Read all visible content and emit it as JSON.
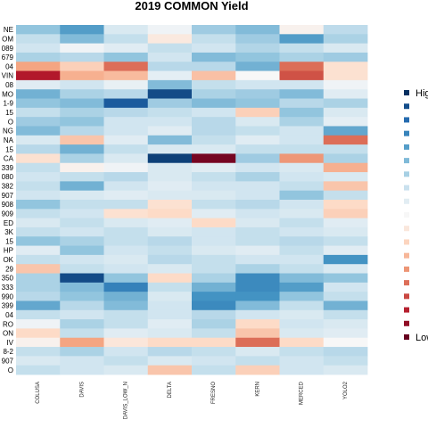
{
  "chart_data": {
    "type": "heatmap",
    "title": "2019 COMMON Yield",
    "columns": [
      "COLUSA",
      "DAVIS",
      "DAVIS_LOW_N",
      "DELTA",
      "FRESNO",
      "KERN",
      "MERCED",
      "YOLO2"
    ],
    "rows": [
      "NE",
      "OM",
      "089",
      "679",
      "04",
      "VIN",
      "08",
      "MO",
      "1-9",
      "15",
      "O",
      "NG",
      "NA",
      "15",
      "CA",
      "339",
      "080",
      "382",
      "907",
      "908",
      "909",
      "ED",
      "3K",
      "15",
      "HP",
      "OK",
      "29",
      "350",
      "333",
      "990",
      "399",
      "04",
      "RO",
      "ON",
      "IV",
      "8-2",
      "907",
      "O"
    ],
    "values": [
      [
        0.7,
        0.78,
        0.58,
        0.52,
        0.68,
        0.72,
        0.48,
        0.63
      ],
      [
        0.62,
        0.72,
        0.62,
        0.45,
        0.62,
        0.68,
        0.78,
        0.66
      ],
      [
        0.6,
        0.52,
        0.56,
        0.62,
        0.6,
        0.65,
        0.62,
        0.58
      ],
      [
        0.66,
        0.64,
        0.7,
        0.6,
        0.72,
        0.7,
        0.66,
        0.68
      ],
      [
        0.3,
        0.38,
        0.22,
        0.64,
        0.64,
        0.74,
        0.22,
        0.42
      ],
      [
        0.1,
        0.32,
        0.34,
        0.55,
        0.35,
        0.5,
        0.18,
        0.42
      ],
      [
        0.56,
        0.6,
        0.54,
        0.72,
        0.62,
        0.6,
        0.6,
        0.52
      ],
      [
        0.74,
        0.66,
        0.64,
        0.95,
        0.66,
        0.68,
        0.72,
        0.56
      ],
      [
        0.7,
        0.72,
        0.92,
        0.68,
        0.72,
        0.7,
        0.64,
        0.66
      ],
      [
        0.62,
        0.66,
        0.64,
        0.62,
        0.6,
        0.38,
        0.7,
        0.58
      ],
      [
        0.68,
        0.7,
        0.6,
        0.6,
        0.64,
        0.58,
        0.66,
        0.55
      ],
      [
        0.72,
        0.64,
        0.6,
        0.56,
        0.64,
        0.62,
        0.6,
        0.76
      ],
      [
        0.58,
        0.36,
        0.56,
        0.72,
        0.62,
        0.56,
        0.6,
        0.22
      ],
      [
        0.64,
        0.74,
        0.62,
        0.58,
        0.58,
        0.62,
        0.62,
        0.62
      ],
      [
        0.42,
        0.66,
        0.58,
        0.97,
        0.02,
        0.68,
        0.28,
        0.66
      ],
      [
        0.62,
        0.48,
        0.52,
        0.58,
        0.56,
        0.6,
        0.58,
        0.32
      ],
      [
        0.6,
        0.62,
        0.64,
        0.58,
        0.62,
        0.66,
        0.6,
        0.58
      ],
      [
        0.62,
        0.74,
        0.6,
        0.56,
        0.6,
        0.6,
        0.62,
        0.36
      ],
      [
        0.6,
        0.58,
        0.56,
        0.58,
        0.58,
        0.6,
        0.7,
        0.62
      ],
      [
        0.7,
        0.62,
        0.62,
        0.42,
        0.62,
        0.64,
        0.6,
        0.4
      ],
      [
        0.62,
        0.6,
        0.42,
        0.4,
        0.56,
        0.6,
        0.58,
        0.38
      ],
      [
        0.58,
        0.62,
        0.58,
        0.56,
        0.4,
        0.58,
        0.62,
        0.56
      ],
      [
        0.62,
        0.6,
        0.62,
        0.58,
        0.6,
        0.62,
        0.6,
        0.58
      ],
      [
        0.7,
        0.66,
        0.62,
        0.64,
        0.6,
        0.62,
        0.64,
        0.62
      ],
      [
        0.56,
        0.7,
        0.6,
        0.62,
        0.58,
        0.56,
        0.62,
        0.56
      ],
      [
        0.62,
        0.6,
        0.58,
        0.64,
        0.62,
        0.6,
        0.6,
        0.8
      ],
      [
        0.36,
        0.62,
        0.6,
        0.58,
        0.62,
        0.66,
        0.62,
        0.58
      ],
      [
        0.66,
        0.95,
        0.7,
        0.4,
        0.66,
        0.82,
        0.72,
        0.7
      ],
      [
        0.66,
        0.72,
        0.84,
        0.62,
        0.74,
        0.82,
        0.78,
        0.6
      ],
      [
        0.64,
        0.7,
        0.74,
        0.58,
        0.8,
        0.8,
        0.7,
        0.62
      ],
      [
        0.76,
        0.64,
        0.72,
        0.6,
        0.82,
        0.72,
        0.62,
        0.74
      ],
      [
        0.62,
        0.6,
        0.62,
        0.6,
        0.64,
        0.6,
        0.58,
        0.62
      ],
      [
        0.52,
        0.66,
        0.62,
        0.56,
        0.66,
        0.4,
        0.6,
        0.58
      ],
      [
        0.4,
        0.62,
        0.56,
        0.58,
        0.62,
        0.36,
        0.58,
        0.56
      ],
      [
        0.48,
        0.3,
        0.44,
        0.4,
        0.4,
        0.22,
        0.4,
        0.5
      ],
      [
        0.62,
        0.66,
        0.6,
        0.64,
        0.62,
        0.58,
        0.62,
        0.64
      ],
      [
        0.58,
        0.6,
        0.62,
        0.58,
        0.6,
        0.62,
        0.6,
        0.62
      ],
      [
        0.62,
        0.6,
        0.58,
        0.36,
        0.62,
        0.38,
        0.6,
        0.58
      ]
    ],
    "color_scale": {
      "high_label": "High",
      "low_label": "Low",
      "colors": [
        "#053061",
        "#2166ac",
        "#4393c3",
        "#92c5de",
        "#d1e5f0",
        "#f7f7f7",
        "#fddbc7",
        "#f4a582",
        "#d6604d",
        "#b2182b",
        "#67001f"
      ]
    },
    "legend_steps": 19,
    "legend_placement": "right",
    "grid": false
  }
}
